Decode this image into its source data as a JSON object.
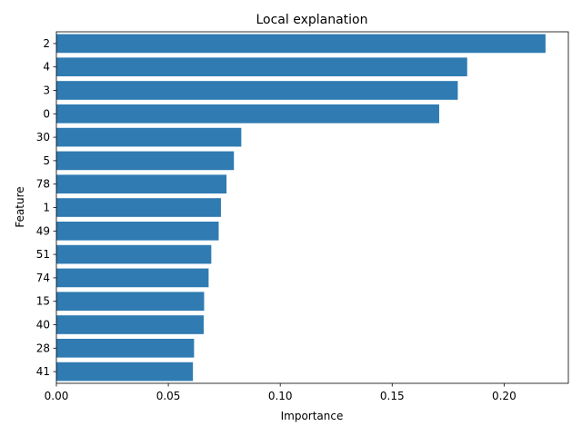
{
  "chart_data": {
    "type": "bar",
    "orientation": "horizontal",
    "title": "Local explanation",
    "xlabel": "Importance",
    "ylabel": "Feature",
    "categories": [
      "2",
      "4",
      "3",
      "0",
      "30",
      "5",
      "78",
      "1",
      "49",
      "51",
      "74",
      "15",
      "40",
      "28",
      "41"
    ],
    "values": [
      0.2185,
      0.1835,
      0.1793,
      0.171,
      0.0826,
      0.0793,
      0.076,
      0.0735,
      0.0725,
      0.0692,
      0.068,
      0.066,
      0.0658,
      0.0615,
      0.061
    ],
    "xlim": [
      0,
      0.2287
    ],
    "xticks": [
      0.0,
      0.05,
      0.1,
      0.15,
      0.2
    ],
    "xtick_labels": [
      "0.00",
      "0.05",
      "0.10",
      "0.15",
      "0.20"
    ],
    "bar_color": "#2f7bb2",
    "grid": false,
    "legend": "none"
  }
}
